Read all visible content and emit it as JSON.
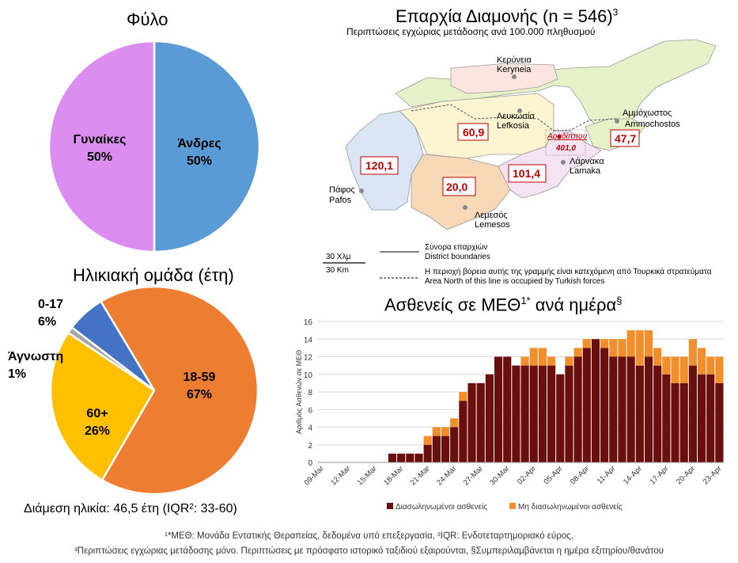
{
  "sex": {
    "title": "Φύλο",
    "chart_data": {
      "type": "pie",
      "title": "Φύλο",
      "slices": [
        {
          "label": "Άνδρες",
          "percent_label": "50%",
          "value": 50,
          "color": "#5b9bd5"
        },
        {
          "label": "Γυναίκες",
          "percent_label": "50%",
          "value": 50,
          "color": "#dc8ef0"
        }
      ]
    }
  },
  "age": {
    "title": "Ηλικιακή ομάδα (έτη)",
    "median": "Διάμεση ηλικία: 46,5 έτη (IQR²: 33-60)",
    "chart_data": {
      "type": "pie",
      "title": "Ηλικιακή ομάδα (έτη)",
      "slices": [
        {
          "label": "18-59",
          "percent_label": "67%",
          "value": 67,
          "color": "#ed7d31"
        },
        {
          "label": "60+",
          "percent_label": "26%",
          "value": 26,
          "color": "#ffc000"
        },
        {
          "label": "Άγνωστη",
          "percent_label": "1%",
          "value": 1,
          "color": "#a5a5a5"
        },
        {
          "label": "0-17",
          "percent_label": "6%",
          "value": 6,
          "color": "#4472c4"
        }
      ]
    }
  },
  "map": {
    "title": "Επαρχία Διαμονής (n = 546)",
    "title_sup": "3",
    "subtitle": "Περιπτώσεις εγχώριας μετάδοσης ανά 100.000 πληθυσμού",
    "districts": [
      {
        "name_gr": "Κερύνεια",
        "name_en": "Keryneia",
        "value": ""
      },
      {
        "name_gr": "Λευκωσία",
        "name_en": "Lefkosia",
        "value": "60,9"
      },
      {
        "name_gr": "Αμμόχωστος",
        "name_en": "Ammochostos",
        "value": "47,7"
      },
      {
        "name_gr": "Αραδίππου",
        "name_en": "",
        "value": "401,0"
      },
      {
        "name_gr": "Λάρνακα",
        "name_en": "Lamaka",
        "value": "101,4"
      },
      {
        "name_gr": "Πάφος",
        "name_en": "Pafos",
        "value": "120,1"
      },
      {
        "name_gr": "Λεμεσός",
        "name_en": "Lemesos",
        "value": "20,0"
      }
    ],
    "scale_top": "30 Χλμ",
    "scale_bottom": "30 Km",
    "legend_boundaries_gr": "Σύνορα επαρχιών",
    "legend_boundaries_en": "District boundaries",
    "legend_north_gr": "Η περιοχή βόρεια αυτής της γραμμής είναι κατεχόμενη από Τουρκικά στρατεύματα",
    "legend_north_en": "Area North of this line is occupied by Turkish forces",
    "colors": {
      "pafos": "#dbe6f4",
      "lefkosia": "#fbf4d0",
      "lemesos": "#f7d9b8",
      "larnaka": "#f3e3f3",
      "ammochostos": "#e6f1c9",
      "keryneia": "#fbe5de",
      "north": "#e6f1c9"
    }
  },
  "icu": {
    "title": "Ασθενείς σε ΜΕΘ",
    "title_sup": "1*",
    "title_rest": "ανά ημέρα",
    "title_sup2": "§",
    "chart_data": {
      "type": "bar",
      "stacked": true,
      "title": "Ασθενείς σε ΜΕΘ1* ανά ημέρα§",
      "ylabel": "Αριθμός Ασθενών σε ΜΕΘ",
      "xlabel": "",
      "ylim": [
        0,
        16
      ],
      "yticks": [
        0,
        2,
        4,
        6,
        8,
        10,
        12,
        14,
        16
      ],
      "grid": true,
      "legend_placement": "bottom",
      "tick_labels": [
        "09-Mar",
        "12-Mar",
        "15-Mar",
        "18-Mar",
        "21-Mar",
        "24-Mar",
        "27-Mar",
        "30-Mar",
        "02-Apr",
        "05-Apr",
        "08-Apr",
        "11-Apr",
        "14-Apr",
        "17-Apr",
        "20-Apr",
        "23-Apr"
      ],
      "categories": [
        "09-Mar",
        "10-Mar",
        "11-Mar",
        "12-Mar",
        "13-Mar",
        "14-Mar",
        "15-Mar",
        "16-Mar",
        "17-Mar",
        "18-Mar",
        "19-Mar",
        "20-Mar",
        "21-Mar",
        "22-Mar",
        "23-Mar",
        "24-Mar",
        "25-Mar",
        "26-Mar",
        "27-Mar",
        "28-Mar",
        "29-Mar",
        "30-Mar",
        "31-Mar",
        "01-Apr",
        "02-Apr",
        "03-Apr",
        "04-Apr",
        "05-Apr",
        "06-Apr",
        "07-Apr",
        "08-Apr",
        "09-Apr",
        "10-Apr",
        "11-Apr",
        "12-Apr",
        "13-Apr",
        "14-Apr",
        "15-Apr",
        "16-Apr",
        "17-Apr",
        "18-Apr",
        "19-Apr",
        "20-Apr",
        "21-Apr",
        "22-Apr",
        "23-Apr"
      ],
      "series": [
        {
          "name": "Διασωληνωμένοι ασθενείς",
          "color": "#6b0e0e",
          "values": [
            0,
            0,
            0,
            0,
            0,
            0,
            0,
            0,
            1,
            1,
            1,
            1,
            2,
            3,
            3,
            4,
            7,
            9,
            9,
            10,
            12,
            12,
            11,
            11,
            11,
            11,
            11,
            10,
            11,
            12,
            13,
            14,
            13,
            12,
            12,
            12,
            11,
            12,
            11,
            10,
            9,
            9,
            11,
            10,
            10,
            9
          ]
        },
        {
          "name": "Μη διασωληνωμένοι ασθενείς",
          "color": "#f28e2b",
          "values": [
            0,
            0,
            0,
            0,
            0,
            0,
            0,
            0,
            0,
            0,
            0,
            0,
            1,
            1,
            1,
            1,
            1,
            0,
            0,
            0,
            0,
            0,
            0,
            1,
            2,
            2,
            1,
            0,
            1,
            1,
            1,
            0,
            1,
            2,
            2,
            3,
            4,
            3,
            2,
            2,
            3,
            3,
            3,
            3,
            2,
            3
          ]
        }
      ]
    }
  },
  "footnotes": {
    "line1": "¹*ΜΕΘ: Μονάδα Εντατικής Θεραπείας, δεδομένα υπό επεξεργασία, ²IQR: Ενδοτεταρτημοριακό εύρος,",
    "line2": "³Περιπτώσεις εγχώριας μετάδοσης μόνο. Περιπτώσεις με πρόσφατο ιστορικό ταξιδιού εξαιρούνται, §Συμπεριλαμβάνεται η ημέρα εξιτηρίου/θανάτου"
  }
}
